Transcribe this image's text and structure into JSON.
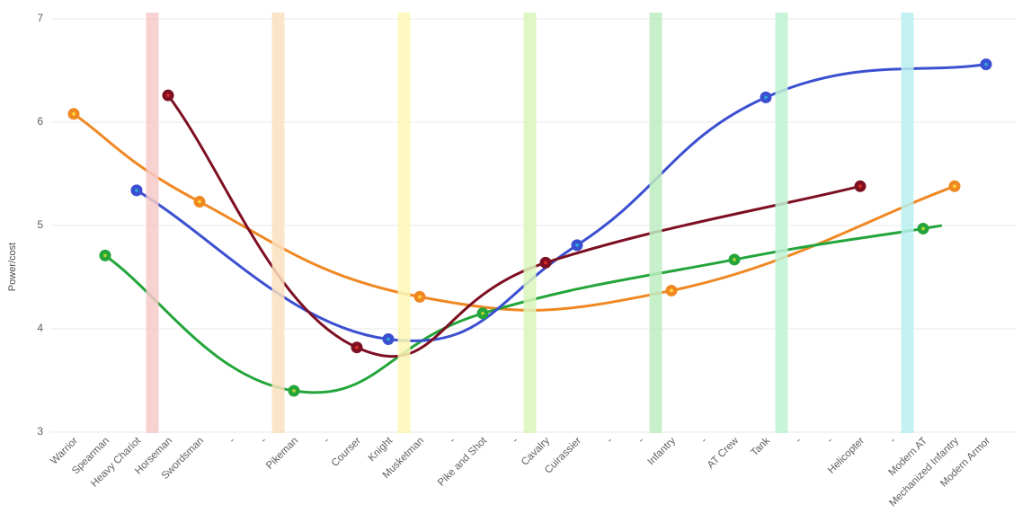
{
  "page": {
    "background": "#ffffff"
  },
  "axis": {
    "y_title": "Power/cost"
  },
  "chart_data": {
    "type": "line",
    "title": "",
    "xlabel": "",
    "ylabel": "Power/cost",
    "ylim": [
      3,
      7
    ],
    "y_ticks": [
      3,
      4,
      5,
      6,
      7
    ],
    "grid": true,
    "legend_position": "none",
    "grid_color": "#e8e8e8",
    "tick_label_color": "#606060",
    "categories": [
      "Warrior",
      "Spearman",
      "Heavy Chariot",
      "Horseman",
      "Swordsman",
      "-",
      "-",
      "Pikeman",
      "-",
      "Courser",
      "Knight",
      "Musketman",
      "-",
      "Pike and Shot",
      "-",
      "Cavalry",
      "Cuirassier",
      "-",
      "-",
      "Infantry",
      "-",
      "AT Crew",
      "Tank",
      "-",
      "-",
      "Helicopter",
      "-",
      "Modern AT",
      "Mechanized Infantry",
      "Modern Armor"
    ],
    "series": [
      {
        "name": "orange-line",
        "color": "#ef8823",
        "marker_center_color": "#ffd83a",
        "points": [
          {
            "category": "Warrior",
            "value": 6.08
          },
          {
            "category": "Swordsman",
            "value": 5.23
          },
          {
            "category": "Musketman",
            "value": 4.31
          },
          {
            "category": "Infantry",
            "value": 4.37
          },
          {
            "category": "Mechanized Infantry",
            "value": 5.38
          }
        ]
      },
      {
        "name": "green-line",
        "color": "#23a53b",
        "marker_center_color": "#b2d433",
        "line_extends_past_last_point": true,
        "points": [
          {
            "category": "Spearman",
            "value": 4.71
          },
          {
            "category": "Pikeman",
            "value": 3.4
          },
          {
            "category": "Pike and Shot",
            "value": 4.15
          },
          {
            "category": "AT Crew",
            "value": 4.67
          },
          {
            "category": "Modern AT",
            "value": 4.97
          }
        ]
      },
      {
        "name": "blue-line",
        "color": "#3b4fd1",
        "marker_center_color": "#29a6d7",
        "points": [
          {
            "category": "Heavy Chariot",
            "value": 5.34
          },
          {
            "category": "Knight",
            "value": 3.9
          },
          {
            "category": "Cuirassier",
            "value": 4.81
          },
          {
            "category": "Tank",
            "value": 6.24
          },
          {
            "category": "Modern Armor",
            "value": 6.56
          }
        ]
      },
      {
        "name": "dark-red-line",
        "color": "#7d0f22",
        "marker_center_color": "#df2a21",
        "points": [
          {
            "category": "Horseman",
            "value": 6.26
          },
          {
            "category": "Courser",
            "value": 3.82
          },
          {
            "category": "Cavalry",
            "value": 4.64
          },
          {
            "category": "Helicopter",
            "value": 5.38
          }
        ]
      }
    ],
    "era_bands": [
      {
        "position": 2.5,
        "color": "#f7c9c9"
      },
      {
        "position": 6.5,
        "color": "#fadfbd"
      },
      {
        "position": 10.5,
        "color": "#fcf7b4"
      },
      {
        "position": 14.5,
        "color": "#d9f4bb"
      },
      {
        "position": 18.5,
        "color": "#bdedc1"
      },
      {
        "position": 22.5,
        "color": "#bef2d3"
      },
      {
        "position": 26.5,
        "color": "#baf0f0"
      }
    ]
  }
}
